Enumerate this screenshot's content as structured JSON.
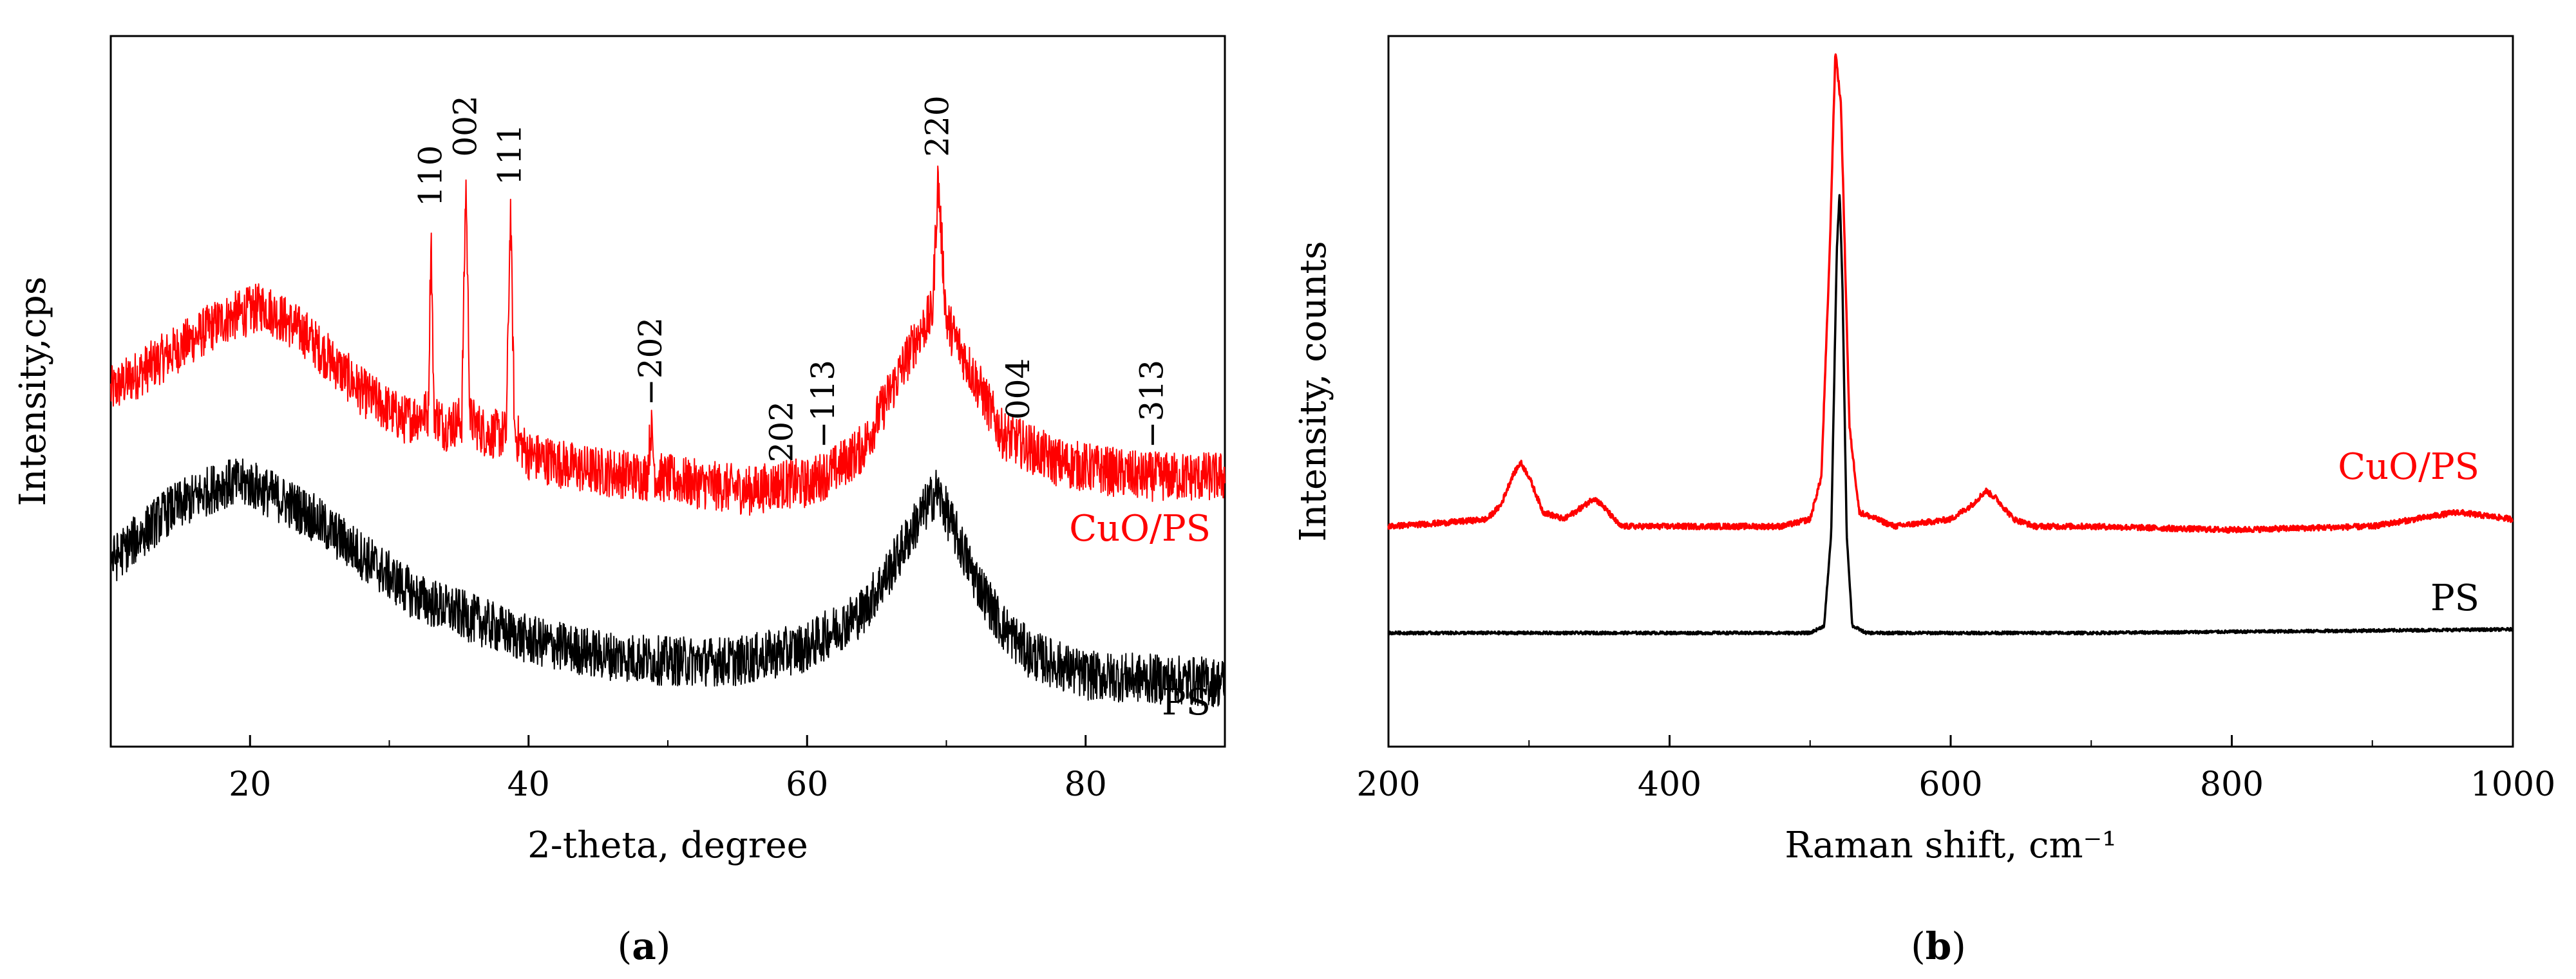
{
  "chart_data": [
    {
      "panel": "a",
      "panel_label": "(a)",
      "type": "line",
      "xlabel": "2-theta, degree",
      "ylabel": "Intensity,cps",
      "xlim": [
        10,
        90
      ],
      "xticks": [
        20,
        40,
        60,
        80
      ],
      "ylim": [
        0,
        1
      ],
      "y_ticks_labeled": false,
      "series": [
        {
          "name": "CuO/PS",
          "color": "#ff0000",
          "noise": 0.035,
          "x": [
            10,
            14,
            18,
            21,
            24,
            28,
            31,
            32.8,
            33.0,
            33.2,
            34,
            35.2,
            35.5,
            35.8,
            37,
            38.4,
            38.7,
            39.0,
            40,
            44,
            48.5,
            48.8,
            49.1,
            52,
            56,
            58.2,
            60,
            62,
            64,
            66,
            68,
            69,
            69.4,
            70,
            72,
            74,
            78,
            84,
            90
          ],
          "y": [
            0.5,
            0.55,
            0.6,
            0.62,
            0.58,
            0.5,
            0.46,
            0.47,
            0.73,
            0.47,
            0.45,
            0.46,
            0.8,
            0.46,
            0.44,
            0.44,
            0.76,
            0.44,
            0.41,
            0.39,
            0.38,
            0.45,
            0.38,
            0.37,
            0.36,
            0.37,
            0.37,
            0.39,
            0.42,
            0.5,
            0.58,
            0.61,
            0.8,
            0.6,
            0.52,
            0.44,
            0.4,
            0.38,
            0.38
          ],
          "label": "CuO/PS"
        },
        {
          "name": "PS",
          "color": "#000000",
          "noise": 0.035,
          "x": [
            10,
            14,
            18,
            20,
            24,
            28,
            32,
            36,
            40,
            45,
            50,
            55,
            60,
            64,
            66,
            68,
            69.3,
            70,
            72,
            74,
            76,
            80,
            90
          ],
          "y": [
            0.26,
            0.33,
            0.37,
            0.37,
            0.33,
            0.27,
            0.21,
            0.18,
            0.15,
            0.13,
            0.12,
            0.12,
            0.14,
            0.19,
            0.25,
            0.32,
            0.36,
            0.33,
            0.24,
            0.17,
            0.13,
            0.1,
            0.09
          ],
          "label": "PS"
        }
      ],
      "annotations": [
        {
          "text": "110",
          "x": 33.0,
          "y": 0.76
        },
        {
          "text": "002",
          "x": 35.5,
          "y": 0.83
        },
        {
          "text": "111",
          "x": 38.7,
          "y": 0.79
        },
        {
          "text": "−202",
          "x": 48.8,
          "y": 0.48
        },
        {
          "text": "202",
          "x": 58.2,
          "y": 0.4
        },
        {
          "text": "−113",
          "x": 61.2,
          "y": 0.42
        },
        {
          "text": "220",
          "x": 69.4,
          "y": 0.83
        },
        {
          "text": "004",
          "x": 75.2,
          "y": 0.46
        },
        {
          "text": "−313",
          "x": 84.8,
          "y": 0.42
        }
      ]
    },
    {
      "panel": "b",
      "panel_label": "(b)",
      "type": "line",
      "xlabel": "Raman shift, cm⁻¹",
      "ylabel": "Intensity, counts",
      "xlim": [
        200,
        1000
      ],
      "xticks": [
        200,
        400,
        600,
        800,
        1000
      ],
      "ylim": [
        0,
        1
      ],
      "y_ticks_labeled": false,
      "series": [
        {
          "name": "CuO/PS",
          "color": "#ff0000",
          "noise": 0.004,
          "x": [
            200,
            240,
            270,
            280,
            288,
            294,
            300,
            310,
            325,
            340,
            346,
            352,
            365,
            420,
            480,
            500,
            508,
            514,
            518,
            522,
            528,
            535,
            560,
            600,
            615,
            625,
            632,
            645,
            660,
            700,
            800,
            900,
            960,
            1000
          ],
          "y": [
            0.31,
            0.315,
            0.32,
            0.34,
            0.38,
            0.4,
            0.38,
            0.33,
            0.32,
            0.34,
            0.35,
            0.34,
            0.31,
            0.31,
            0.31,
            0.32,
            0.38,
            0.7,
            0.98,
            0.9,
            0.45,
            0.33,
            0.31,
            0.32,
            0.34,
            0.36,
            0.35,
            0.32,
            0.31,
            0.31,
            0.305,
            0.31,
            0.33,
            0.32
          ],
          "label": "CuO/PS"
        },
        {
          "name": "PS",
          "color": "#000000",
          "noise": 0.002,
          "x": [
            200,
            400,
            500,
            510,
            515,
            519,
            521,
            523,
            526,
            530,
            540,
            700,
            1000
          ],
          "y": [
            0.16,
            0.16,
            0.16,
            0.17,
            0.3,
            0.7,
            0.78,
            0.65,
            0.3,
            0.17,
            0.16,
            0.16,
            0.165
          ],
          "label": "PS"
        }
      ]
    }
  ]
}
